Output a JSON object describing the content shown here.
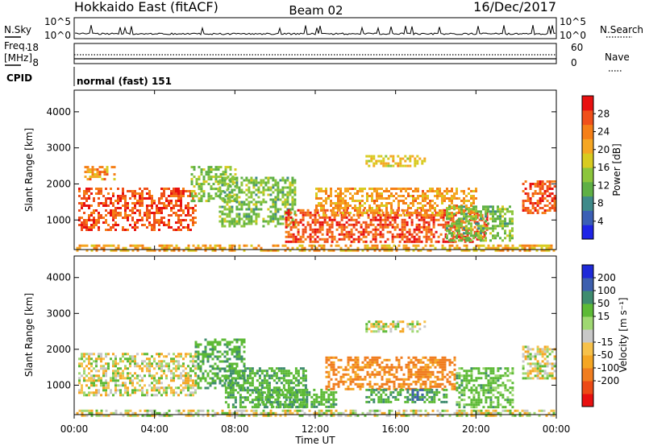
{
  "header": {
    "station": "Hokkaido East (fitACF)",
    "beam": "Beam 02",
    "date": "16/Dec/2017"
  },
  "noise_panel": {
    "left_label": "N.Sky",
    "left_ticks": [
      "10^5",
      "10^0"
    ],
    "right_label": "N.Search",
    "right_ticks": [
      "10^5",
      "10^0"
    ]
  },
  "freq_panel": {
    "left_label_1": "Freq.",
    "left_label_2": "[MHz]",
    "left_ticks": [
      "18",
      "8"
    ],
    "right_label": "Nave",
    "right_ticks": [
      "60",
      "0"
    ]
  },
  "cpid_panel": {
    "label": "CPID",
    "mode": "normal (fast) 151"
  },
  "time_axis": {
    "label": "Time UT",
    "ticks": [
      "00:00",
      "04:00",
      "08:00",
      "12:00",
      "16:00",
      "20:00",
      "00:00"
    ]
  },
  "chart_data": [
    {
      "type": "heatmap",
      "name": "Power",
      "xlabel": "Time UT",
      "ylabel": "Slant Range [km]",
      "xlim": [
        0,
        24
      ],
      "ylim": [
        180,
        4600
      ],
      "y_ticks": [
        "1000",
        "2000",
        "3000",
        "4000"
      ],
      "y_tick_values": [
        1000,
        2000,
        3000,
        4000
      ],
      "colorbar": {
        "label": "Power [dB]",
        "ticks": [
          "4",
          "8",
          "12",
          "16",
          "20",
          "24",
          "28"
        ],
        "tick_values": [
          4,
          8,
          12,
          16,
          20,
          24,
          28
        ],
        "range": [
          0,
          32
        ],
        "colors": [
          "#1e24e6",
          "#3b5fb5",
          "#3f8a8a",
          "#5fb045",
          "#8cc63c",
          "#d8cb20",
          "#f5a623",
          "#f57f17",
          "#f0501a",
          "#e81010"
        ]
      },
      "regions": [
        {
          "t0": 0.2,
          "t1": 6.0,
          "r0": 700,
          "r1": 1900,
          "value": 27
        },
        {
          "t0": 5.8,
          "t1": 8.0,
          "r0": 1500,
          "r1": 2500,
          "value": 14
        },
        {
          "t0": 7.2,
          "t1": 11.0,
          "r0": 800,
          "r1": 2200,
          "value": 13
        },
        {
          "t0": 10.5,
          "t1": 20.5,
          "r0": 400,
          "r1": 1300,
          "value": 27
        },
        {
          "t0": 12.0,
          "t1": 20.0,
          "r0": 1100,
          "r1": 1900,
          "value": 22
        },
        {
          "t0": 18.5,
          "t1": 21.8,
          "r0": 400,
          "r1": 1400,
          "value": 13
        },
        {
          "t0": 22.3,
          "t1": 23.9,
          "r0": 1200,
          "r1": 2100,
          "value": 27
        },
        {
          "t0": 0.5,
          "t1": 2.0,
          "r0": 2100,
          "r1": 2500,
          "value": 22
        },
        {
          "t0": 14.5,
          "t1": 17.5,
          "r0": 2500,
          "r1": 2800,
          "value": 19
        },
        {
          "t0": 0.1,
          "t1": 23.9,
          "r0": 180,
          "r1": 320,
          "value": 21
        }
      ]
    },
    {
      "type": "heatmap",
      "name": "Velocity",
      "xlabel": "Time UT",
      "ylabel": "Slant Range [km]",
      "xlim": [
        0,
        24
      ],
      "ylim": [
        180,
        4600
      ],
      "y_ticks": [
        "1000",
        "2000",
        "3000",
        "4000"
      ],
      "y_tick_values": [
        1000,
        2000,
        3000,
        4000
      ],
      "colorbar": {
        "label": "Velocity [m s⁻¹]",
        "ticks": [
          "200",
          "100",
          "50",
          "15",
          "-15",
          "-50",
          "-100",
          "-200"
        ],
        "tick_values": [
          200,
          100,
          50,
          15,
          -15,
          -50,
          -100,
          -200
        ],
        "colors": [
          "#1e2ad8",
          "#3d5fae",
          "#3f8c6f",
          "#5dba36",
          "#9fd872",
          "#c8c8c8",
          "#f7c14a",
          "#f5a623",
          "#f07d1f",
          "#ec4a16",
          "#e81010"
        ]
      },
      "regions": [
        {
          "t0": 0.2,
          "t1": 6.0,
          "r0": 700,
          "r1": 1900,
          "value": 0
        },
        {
          "t0": 6.0,
          "t1": 8.5,
          "r0": 900,
          "r1": 2300,
          "value": 40
        },
        {
          "t0": 7.5,
          "t1": 11.5,
          "r0": 400,
          "r1": 1500,
          "value": 40
        },
        {
          "t0": 9.0,
          "t1": 13.0,
          "r0": 400,
          "r1": 900,
          "value": 40
        },
        {
          "t0": 12.5,
          "t1": 19.0,
          "r0": 900,
          "r1": 1800,
          "value": -60
        },
        {
          "t0": 14.5,
          "t1": 18.5,
          "r0": 500,
          "r1": 900,
          "value": 40
        },
        {
          "t0": 16.8,
          "t1": 17.4,
          "r0": 600,
          "r1": 900,
          "value": 120
        },
        {
          "t0": 19.0,
          "t1": 21.8,
          "r0": 400,
          "r1": 1500,
          "value": 30
        },
        {
          "t0": 22.3,
          "t1": 23.9,
          "r0": 1200,
          "r1": 2100,
          "value": 0
        },
        {
          "t0": 14.5,
          "t1": 17.5,
          "r0": 2500,
          "r1": 2800,
          "value": 0
        },
        {
          "t0": 0.1,
          "t1": 23.9,
          "r0": 180,
          "r1": 320,
          "value": 0
        }
      ]
    }
  ]
}
